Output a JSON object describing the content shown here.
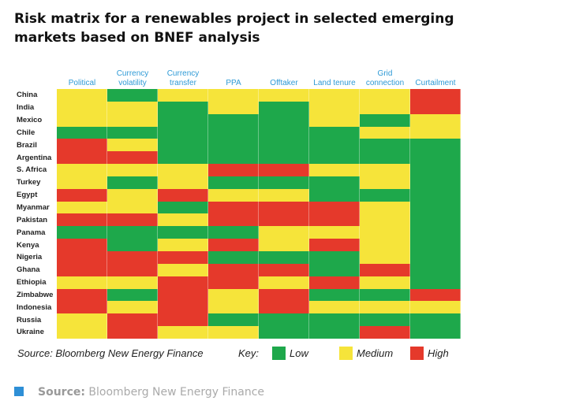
{
  "chart_data": {
    "type": "heatmap",
    "title": "Risk matrix for a renewables project in selected emerging markets based on BNEF analysis",
    "columns": [
      "Political",
      "Currency volatility",
      "Currency transfer",
      "PPA",
      "Offtaker",
      "Land tenure",
      "Grid connection",
      "Curtailment"
    ],
    "rows": [
      "China",
      "India",
      "Mexico",
      "Chile",
      "Brazil",
      "Argentina",
      "S. Africa",
      "Turkey",
      "Egypt",
      "Myanmar",
      "Pakistan",
      "Panama",
      "Kenya",
      "Nigeria",
      "Ghana",
      "Ethiopia",
      "Zimbabwe",
      "Indonesia",
      "Russia",
      "Ukraine"
    ],
    "values": [
      [
        1,
        0,
        1,
        1,
        1,
        1,
        1,
        2
      ],
      [
        1,
        1,
        0,
        1,
        0,
        1,
        1,
        2
      ],
      [
        1,
        1,
        0,
        0,
        0,
        1,
        0,
        1
      ],
      [
        0,
        0,
        0,
        0,
        0,
        0,
        1,
        1
      ],
      [
        2,
        1,
        0,
        0,
        0,
        0,
        0,
        0
      ],
      [
        2,
        2,
        0,
        0,
        0,
        0,
        0,
        0
      ],
      [
        1,
        1,
        1,
        2,
        2,
        1,
        1,
        0
      ],
      [
        1,
        0,
        1,
        0,
        0,
        0,
        1,
        0
      ],
      [
        2,
        1,
        2,
        1,
        1,
        0,
        0,
        0
      ],
      [
        1,
        1,
        0,
        2,
        2,
        2,
        1,
        0
      ],
      [
        2,
        2,
        1,
        2,
        2,
        2,
        1,
        0
      ],
      [
        0,
        0,
        0,
        0,
        1,
        1,
        1,
        0
      ],
      [
        2,
        0,
        1,
        2,
        1,
        2,
        1,
        0
      ],
      [
        2,
        2,
        2,
        0,
        0,
        0,
        1,
        0
      ],
      [
        2,
        2,
        1,
        2,
        2,
        0,
        2,
        0
      ],
      [
        1,
        1,
        2,
        2,
        1,
        2,
        1,
        0
      ],
      [
        2,
        0,
        2,
        1,
        2,
        0,
        0,
        2
      ],
      [
        2,
        1,
        2,
        1,
        2,
        1,
        1,
        1
      ],
      [
        1,
        2,
        2,
        0,
        0,
        0,
        0,
        0
      ],
      [
        1,
        2,
        1,
        1,
        0,
        0,
        2,
        0
      ]
    ],
    "source": "Source: Bloomberg New Energy Finance",
    "key_label": "Key:",
    "levels": [
      {
        "name": "Low",
        "color": "#1ea84b"
      },
      {
        "name": "Medium",
        "color": "#f6e43a"
      },
      {
        "name": "High",
        "color": "#e5392b"
      }
    ]
  },
  "footer": {
    "label": "Source:",
    "text": "Bloomberg New Energy Finance"
  }
}
